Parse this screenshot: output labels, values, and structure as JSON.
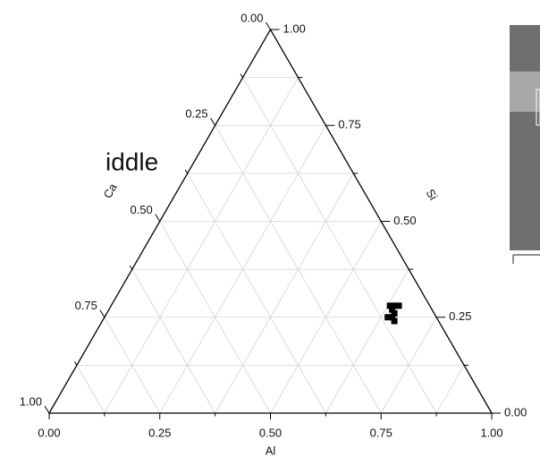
{
  "chart_data": {
    "type": "ternary",
    "fragment_text": "iddle",
    "axes": {
      "al": {
        "title": "Al",
        "ticks": [
          {
            "value": 0,
            "label": "0.00"
          },
          {
            "value": 0.25,
            "label": "0.25"
          },
          {
            "value": 0.5,
            "label": "0.50"
          },
          {
            "value": 0.75,
            "label": "0.75"
          },
          {
            "value": 1,
            "label": "1.00"
          }
        ]
      },
      "si": {
        "title": "Si",
        "ticks": [
          {
            "value": 0,
            "label": "0.00"
          },
          {
            "value": 0.25,
            "label": "0.25"
          },
          {
            "value": 0.5,
            "label": "0.50"
          },
          {
            "value": 0.75,
            "label": "0.75"
          },
          {
            "value": 1,
            "label": "1.00"
          }
        ]
      },
      "ca": {
        "title": "Ca",
        "ticks": [
          {
            "value": 0,
            "label": "0.00"
          },
          {
            "value": 0.25,
            "label": "0.25"
          },
          {
            "value": 0.5,
            "label": "0.50"
          },
          {
            "value": 0.75,
            "label": "0.75"
          },
          {
            "value": 1,
            "label": "1.00"
          }
        ]
      }
    },
    "minor_ticks": [
      0.125,
      0.375,
      0.625,
      0.875
    ],
    "grid": true,
    "series": [
      {
        "color": "#000000",
        "al": [
          0.64,
          0.63,
          0.65,
          0.64,
          0.65,
          0.64,
          0.65,
          0.66
        ],
        "si": [
          0.28,
          0.28,
          0.28,
          0.27,
          0.26,
          0.25,
          0.25,
          0.24
        ],
        "ca": [
          0.08,
          0.09,
          0.07,
          0.09,
          0.09,
          0.11,
          0.1,
          0.1
        ]
      }
    ]
  }
}
